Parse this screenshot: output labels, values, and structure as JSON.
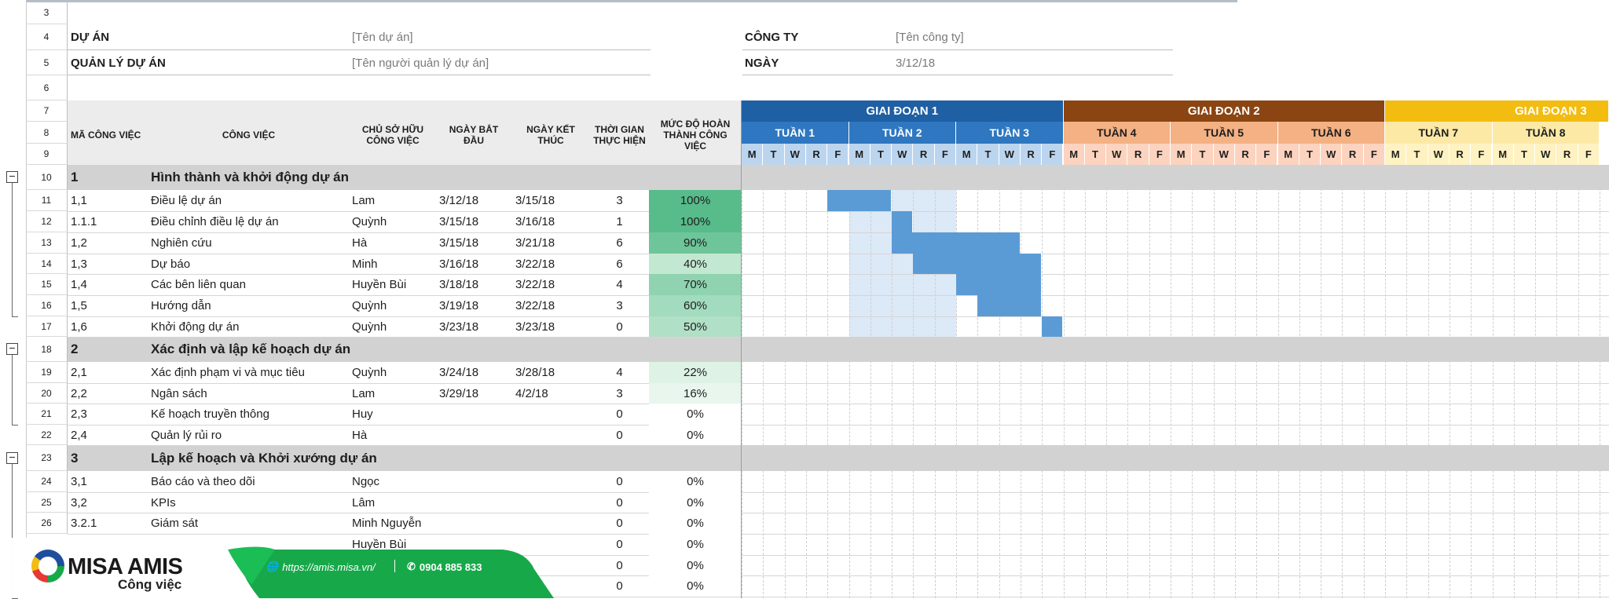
{
  "sheet": {
    "project_label": "DỰ ÁN",
    "project_value": "[Tên dự án]",
    "manager_label": "QUẢN LÝ DỰ ÁN",
    "manager_value": "[Tên người quản lý dự án]",
    "company_label": "CÔNG TY",
    "company_value": "[Tên công ty]",
    "date_label": "NGÀY",
    "date_value": "3/12/18"
  },
  "columns": {
    "id": "MÃ CÔNG VIỆC",
    "task": "CÔNG VIỆC",
    "owner": "CHỦ SỞ HỮU CÔNG VIỆC",
    "start": "NGÀY BẮT ĐẦU",
    "end": "NGÀY KẾT THÚC",
    "duration": "THỜI GIAN THỰC HIỆN",
    "percent": "MỨC ĐỘ HOÀN THÀNH CÔNG VIỆC"
  },
  "row_numbers": [
    "3",
    "4",
    "5",
    "6",
    "7",
    "8",
    "9",
    "10",
    "11",
    "12",
    "13",
    "14",
    "15",
    "16",
    "17",
    "18",
    "19",
    "20",
    "21",
    "22",
    "23",
    "24",
    "25",
    "26"
  ],
  "phases": [
    {
      "label": "GIAI ĐOẠN 1",
      "color": "#1f5fa3"
    },
    {
      "label": "GIAI ĐOẠN 2",
      "color": "#8a4513"
    },
    {
      "label": "GIAI ĐOẠN 3",
      "color": "#f2bc11"
    }
  ],
  "weeks": [
    {
      "label": "TUẦN 1",
      "bg": "#2f77c0",
      "fg": "#ffffff"
    },
    {
      "label": "TUẦN 2",
      "bg": "#2f77c0",
      "fg": "#ffffff"
    },
    {
      "label": "TUẦN 3",
      "bg": "#2f77c0",
      "fg": "#ffffff"
    },
    {
      "label": "TUẦN 4",
      "bg": "#f4b183",
      "fg": "#1e1e1e"
    },
    {
      "label": "TUẦN 5",
      "bg": "#f4b183",
      "fg": "#1e1e1e"
    },
    {
      "label": "TUẦN 6",
      "bg": "#f4b183",
      "fg": "#1e1e1e"
    },
    {
      "label": "TUẦN 7",
      "bg": "#fde9a6",
      "fg": "#1e1e1e"
    },
    {
      "label": "TUẦN 8",
      "bg": "#fde9a6",
      "fg": "#1e1e1e"
    }
  ],
  "day_letters": [
    "M",
    "T",
    "W",
    "R",
    "F"
  ],
  "day_colors": [
    "#bcd5ef",
    "#fbd3bf",
    "#fff2c2"
  ],
  "sections": [
    {
      "row": "10",
      "id": "1",
      "title": "Hình thành và khởi động dự án"
    },
    {
      "row": "18",
      "id": "2",
      "title": "Xác định và lập kế hoạch dự án"
    },
    {
      "row": "23",
      "id": "3",
      "title": "Lập kế hoạch và Khởi xướng dự án"
    }
  ],
  "tasks": [
    {
      "id": "1,1",
      "task": "Điều lệ dự án",
      "owner": "Lam",
      "start": "3/12/18",
      "end": "3/15/18",
      "duration": "3",
      "percent": "100%"
    },
    {
      "id": "1.1.1",
      "task": "Điều chỉnh điều lệ dự án",
      "owner": "Quỳnh",
      "start": "3/15/18",
      "end": "3/16/18",
      "duration": "1",
      "percent": "100%"
    },
    {
      "id": "1,2",
      "task": "Nghiên cứu",
      "owner": "Hà",
      "start": "3/15/18",
      "end": "3/21/18",
      "duration": "6",
      "percent": "90%"
    },
    {
      "id": "1,3",
      "task": "Dự báo",
      "owner": "Minh",
      "start": "3/16/18",
      "end": "3/22/18",
      "duration": "6",
      "percent": "40%"
    },
    {
      "id": "1,4",
      "task": "Các bên liên quan",
      "owner": "Huyền Bùi",
      "start": "3/18/18",
      "end": "3/22/18",
      "duration": "4",
      "percent": "70%"
    },
    {
      "id": "1,5",
      "task": "Hướng dẫn",
      "owner": "Quỳnh",
      "start": "3/19/18",
      "end": "3/22/18",
      "duration": "3",
      "percent": "60%"
    },
    {
      "id": "1,6",
      "task": "Khởi động dự án",
      "owner": "Quỳnh",
      "start": "3/23/18",
      "end": "3/23/18",
      "duration": "0",
      "percent": "50%"
    },
    {
      "id": "2,1",
      "task": "Xác định phạm vi và mục tiêu",
      "owner": "Quỳnh",
      "start": "3/24/18",
      "end": "3/28/18",
      "duration": "4",
      "percent": "22%"
    },
    {
      "id": "2,2",
      "task": "Ngân sách",
      "owner": "Lam",
      "start": "3/29/18",
      "end": "4/2/18",
      "duration": "3",
      "percent": "16%"
    },
    {
      "id": "2,3",
      "task": "Kế hoạch truyền thông",
      "owner": "Huy",
      "start": "",
      "end": "",
      "duration": "0",
      "percent": "0%"
    },
    {
      "id": "2,4",
      "task": "Quản lý rủi ro",
      "owner": "Hà",
      "start": "",
      "end": "",
      "duration": "0",
      "percent": "0%"
    },
    {
      "id": "3,1",
      "task": "Báo cáo và theo dõi",
      "owner": "Ngọc",
      "start": "",
      "end": "",
      "duration": "0",
      "percent": "0%"
    },
    {
      "id": "3,2",
      "task": "KPIs",
      "owner": "Lâm",
      "start": "",
      "end": "",
      "duration": "0",
      "percent": "0%"
    },
    {
      "id": "3.2.1",
      "task": "Giám sát",
      "owner": "Minh Nguyễn",
      "start": "",
      "end": "",
      "duration": "0",
      "percent": "0%"
    },
    {
      "id": "",
      "task": "",
      "owner": "Huyền Bùi",
      "start": "",
      "end": "",
      "duration": "0",
      "percent": "0%"
    },
    {
      "id": "",
      "task": "",
      "owner": "",
      "start": "",
      "end": "",
      "duration": "0",
      "percent": "0%"
    },
    {
      "id": "",
      "task": "",
      "owner": "",
      "start": "",
      "end": "",
      "duration": "0",
      "percent": "0%"
    }
  ],
  "percent_colors": [
    "#57bb8a",
    "#57bb8a",
    "#6fc59a",
    "#c3e8d2",
    "#8fd3b0",
    "#a3dbbe",
    "#b0e0c6",
    "#def2e6",
    "#e8f6ee",
    "#ffffff",
    "#ffffff",
    "#ffffff",
    "#ffffff",
    "#ffffff",
    "#ffffff",
    "#ffffff",
    "#ffffff"
  ],
  "gantt": {
    "bar_color": "#5b9bd5",
    "light_color": "#dce9f7",
    "bars": [
      {
        "task": 0,
        "start_day": 4,
        "end_day": 6
      },
      {
        "task": 1,
        "start_day": 7,
        "end_day": 7
      },
      {
        "task": 2,
        "start_day": 7,
        "end_day": 12
      },
      {
        "task": 3,
        "start_day": 8,
        "end_day": 13
      },
      {
        "task": 4,
        "start_day": 10,
        "end_day": 13
      },
      {
        "task": 5,
        "start_day": 11,
        "end_day": 13
      },
      {
        "task": 6,
        "start_day": 14,
        "end_day": 14
      }
    ],
    "highlight": {
      "start_day": 5,
      "end_day": 9
    }
  },
  "footer": {
    "brand": "MISA AMIS",
    "subtitle": "Công việc",
    "url": "https://amis.misa.vn/",
    "phone": "0904 885 833",
    "brand_blue": "#1f4f9c",
    "brand_green": "#17a84a"
  }
}
